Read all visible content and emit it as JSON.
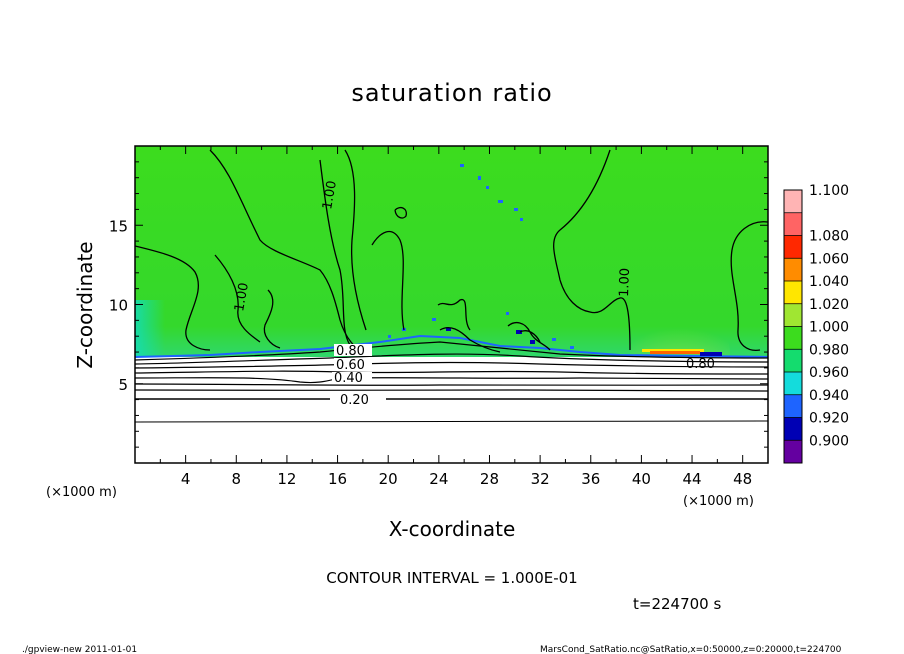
{
  "chart_data": {
    "type": "heatmap",
    "title": "saturation ratio",
    "xlabel": "X-coordinate",
    "ylabel": "Z-coordinate",
    "x_unit": "(×1000 m)",
    "y_unit": "(×1000 m)",
    "xlim": [
      0,
      50
    ],
    "ylim": [
      0,
      20
    ],
    "x_ticks": [
      "4",
      "8",
      "12",
      "16",
      "20",
      "24",
      "28",
      "32",
      "36",
      "40",
      "44",
      "48"
    ],
    "y_ticks": [
      "5",
      "10",
      "15"
    ],
    "contour_labels": [
      "1.00",
      "1.00",
      "1.00",
      "0.80",
      "0.60",
      "0.40",
      "0.20",
      "0.80"
    ],
    "colorbar": {
      "labels": [
        "1.100",
        "1.080",
        "1.060",
        "1.040",
        "1.020",
        "1.000",
        "0.980",
        "0.960",
        "0.940",
        "0.920",
        "0.900"
      ],
      "colors": [
        "#ffb4b4",
        "#ff6464",
        "#ff2800",
        "#ff8c00",
        "#ffe600",
        "#a0e632",
        "#3cdc1e",
        "#14dc6e",
        "#14dcdc",
        "#1e64ff",
        "#0000b4",
        "#6400a0"
      ]
    },
    "contour_interval": "CONTOUR INTERVAL = 1.000E-01",
    "time": "t=224700 s"
  },
  "footer": {
    "left": "./gpview-new  2011-01-01",
    "right": "MarsCond_SatRatio.nc@SatRatio,x=0:50000,z=0:20000,t=224700"
  }
}
